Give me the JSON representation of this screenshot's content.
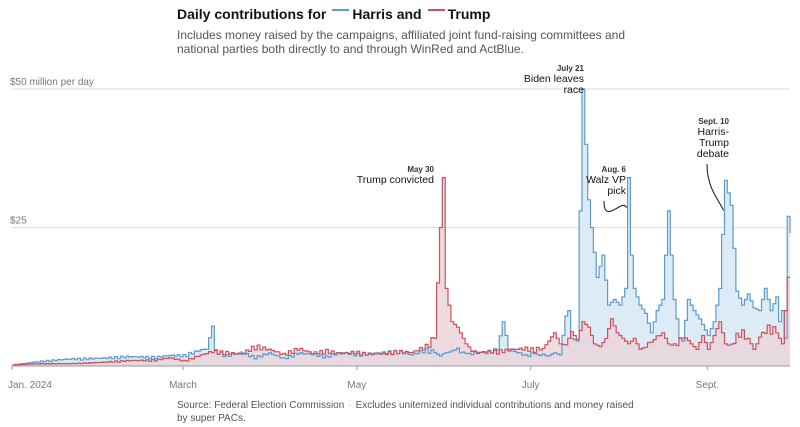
{
  "header": {
    "title_prefix": "Daily contributions for",
    "harris_label": "Harris and",
    "trump_label": "Trump",
    "subtitle": "Includes money raised by the campaigns, affiliated joint fund-raising committees and national parties both directly to and through WinRed and ActBlue."
  },
  "footer": {
    "source": "Source: Federal Election Commission",
    "separator": "·",
    "note": "Excludes unitemized individual contributions and money raised by super PACs."
  },
  "colors": {
    "harris_line": "#5b9bd0",
    "harris_fill": "#dcebf6",
    "trump_line": "#d0505a",
    "trump_fill": "#ead5da",
    "gridline": "#dddddd",
    "axis_text": "#777777"
  },
  "chart_data": {
    "type": "area",
    "title": "Daily contributions for Harris and Trump",
    "ylabel": "$ million per day",
    "ylim": [
      0,
      50
    ],
    "y_ticks": [
      {
        "value": 25,
        "label": "$25"
      },
      {
        "value": 50,
        "label": "$50 million per day"
      }
    ],
    "x_start": "2024-01-01",
    "x_end": "2024-09-30",
    "x_ticks": [
      {
        "day": 0,
        "label": "Jan. 2024"
      },
      {
        "day": 60,
        "label": "March"
      },
      {
        "day": 121,
        "label": "May"
      },
      {
        "day": 182,
        "label": "July"
      },
      {
        "day": 244,
        "label": "Sept."
      }
    ],
    "series": [
      {
        "name": "Harris",
        "points": [
          [
            0,
            0.2
          ],
          [
            10,
            0.8
          ],
          [
            20,
            1.2
          ],
          [
            30,
            1.3
          ],
          [
            40,
            1.6
          ],
          [
            50,
            1.5
          ],
          [
            55,
            1.8
          ],
          [
            60,
            1.8
          ],
          [
            65,
            2.6
          ],
          [
            68,
            3.0
          ],
          [
            70,
            7.2
          ],
          [
            71,
            2.6
          ],
          [
            75,
            1.7
          ],
          [
            80,
            2.3
          ],
          [
            85,
            1.5
          ],
          [
            90,
            2.2
          ],
          [
            95,
            1.3
          ],
          [
            100,
            2.2
          ],
          [
            105,
            2.0
          ],
          [
            110,
            1.6
          ],
          [
            115,
            2.3
          ],
          [
            120,
            2.0
          ],
          [
            125,
            2.1
          ],
          [
            130,
            2.3
          ],
          [
            135,
            2.5
          ],
          [
            140,
            1.9
          ],
          [
            145,
            2.8
          ],
          [
            148,
            2.4
          ],
          [
            150,
            1.8
          ],
          [
            153,
            2.5
          ],
          [
            155,
            3.0
          ],
          [
            158,
            2.5
          ],
          [
            160,
            2.0
          ],
          [
            163,
            2.4
          ],
          [
            166,
            2.2
          ],
          [
            170,
            2.9
          ],
          [
            172,
            8.0
          ],
          [
            174,
            3.0
          ],
          [
            176,
            2.5
          ],
          [
            180,
            1.8
          ],
          [
            183,
            2.2
          ],
          [
            185,
            2.0
          ],
          [
            188,
            1.8
          ],
          [
            190,
            2.4
          ],
          [
            192,
            2.0
          ],
          [
            194,
            9.0
          ],
          [
            195,
            10.0
          ],
          [
            196,
            5.0
          ],
          [
            198,
            4.5
          ],
          [
            199,
            28.0
          ],
          [
            200,
            50.0
          ],
          [
            201,
            40.0
          ],
          [
            202,
            30.0
          ],
          [
            203,
            25.0
          ],
          [
            205,
            16.0
          ],
          [
            207,
            20.0
          ],
          [
            209,
            11.0
          ],
          [
            211,
            12.0
          ],
          [
            213,
            11.0
          ],
          [
            215,
            14.0
          ],
          [
            216,
            34.0
          ],
          [
            217,
            20.0
          ],
          [
            218,
            14.0
          ],
          [
            220,
            11.0
          ],
          [
            222,
            9.5
          ],
          [
            224,
            6.0
          ],
          [
            226,
            10.0
          ],
          [
            228,
            12.0
          ],
          [
            230,
            28.0
          ],
          [
            232,
            12.0
          ],
          [
            234,
            5.0
          ],
          [
            235,
            4.5
          ],
          [
            237,
            12.0
          ],
          [
            239,
            10.0
          ],
          [
            241,
            8.5
          ],
          [
            243,
            6.5
          ],
          [
            244,
            5.5
          ],
          [
            246,
            8.0
          ],
          [
            248,
            14.0
          ],
          [
            250,
            33.5
          ],
          [
            252,
            29.0
          ],
          [
            254,
            13.5
          ],
          [
            256,
            11.0
          ],
          [
            258,
            13.0
          ],
          [
            260,
            10.5
          ],
          [
            262,
            10.0
          ],
          [
            264,
            14.0
          ],
          [
            266,
            10.0
          ],
          [
            268,
            12.5
          ],
          [
            269,
            8.0
          ],
          [
            270,
            10.0
          ],
          [
            271,
            5.0
          ],
          [
            272,
            27.0
          ],
          [
            273,
            24.0
          ]
        ]
      },
      {
        "name": "Trump",
        "points": [
          [
            0,
            0.2
          ],
          [
            10,
            0.4
          ],
          [
            20,
            0.4
          ],
          [
            30,
            0.6
          ],
          [
            40,
            0.9
          ],
          [
            50,
            1.0
          ],
          [
            55,
            1.4
          ],
          [
            60,
            0.9
          ],
          [
            65,
            1.7
          ],
          [
            70,
            2.5
          ],
          [
            75,
            2.3
          ],
          [
            80,
            2.0
          ],
          [
            85,
            3.4
          ],
          [
            90,
            2.8
          ],
          [
            95,
            2.0
          ],
          [
            100,
            3.0
          ],
          [
            105,
            2.2
          ],
          [
            110,
            2.6
          ],
          [
            115,
            2.1
          ],
          [
            120,
            2.4
          ],
          [
            125,
            2.0
          ],
          [
            130,
            2.1
          ],
          [
            135,
            2.5
          ],
          [
            140,
            2.3
          ],
          [
            145,
            3.4
          ],
          [
            148,
            5.0
          ],
          [
            150,
            25.0
          ],
          [
            151,
            34.0
          ],
          [
            152,
            14.0
          ],
          [
            154,
            8.0
          ],
          [
            156,
            7.0
          ],
          [
            158,
            5.0
          ],
          [
            160,
            3.0
          ],
          [
            163,
            2.2
          ],
          [
            166,
            2.5
          ],
          [
            170,
            2.5
          ],
          [
            175,
            2.8
          ],
          [
            180,
            3.0
          ],
          [
            183,
            2.8
          ],
          [
            186,
            3.2
          ],
          [
            188,
            4.5
          ],
          [
            190,
            6.0
          ],
          [
            192,
            4.0
          ],
          [
            194,
            3.8
          ],
          [
            196,
            6.2
          ],
          [
            198,
            4.8
          ],
          [
            200,
            8.0
          ],
          [
            202,
            7.0
          ],
          [
            204,
            4.0
          ],
          [
            206,
            3.5
          ],
          [
            208,
            5.0
          ],
          [
            210,
            8.5
          ],
          [
            212,
            6.0
          ],
          [
            214,
            5.0
          ],
          [
            216,
            4.0
          ],
          [
            218,
            5.0
          ],
          [
            220,
            3.0
          ],
          [
            222,
            3.5
          ],
          [
            225,
            4.5
          ],
          [
            228,
            6.0
          ],
          [
            230,
            4.0
          ],
          [
            232,
            3.5
          ],
          [
            235,
            5.0
          ],
          [
            238,
            4.0
          ],
          [
            240,
            3.0
          ],
          [
            242,
            5.5
          ],
          [
            244,
            3.0
          ],
          [
            246,
            5.5
          ],
          [
            248,
            8.0
          ],
          [
            250,
            4.0
          ],
          [
            252,
            3.5
          ],
          [
            255,
            6.0
          ],
          [
            258,
            5.0
          ],
          [
            260,
            3.0
          ],
          [
            262,
            5.0
          ],
          [
            265,
            6.5
          ],
          [
            268,
            6.0
          ],
          [
            270,
            4.0
          ],
          [
            272,
            16.0
          ],
          [
            273,
            16.0
          ]
        ]
      }
    ],
    "annotations": [
      {
        "id": "trump-convicted",
        "date": "May 30",
        "text": [
          "Trump convicted"
        ],
        "day": 151,
        "value": 34
      },
      {
        "id": "biden-leaves",
        "date": "July 21",
        "text": [
          "Biden leaves",
          "race"
        ],
        "day": 200,
        "value": 50
      },
      {
        "id": "walz-vp",
        "date": "Aug. 6",
        "text": [
          "Walz VP",
          "pick"
        ],
        "day": 216,
        "value": 34
      },
      {
        "id": "harris-trump-debate",
        "date": "Sept. 10",
        "text": [
          "Harris-",
          "Trump",
          "debate"
        ],
        "day": 250,
        "value": 33.5
      }
    ]
  }
}
